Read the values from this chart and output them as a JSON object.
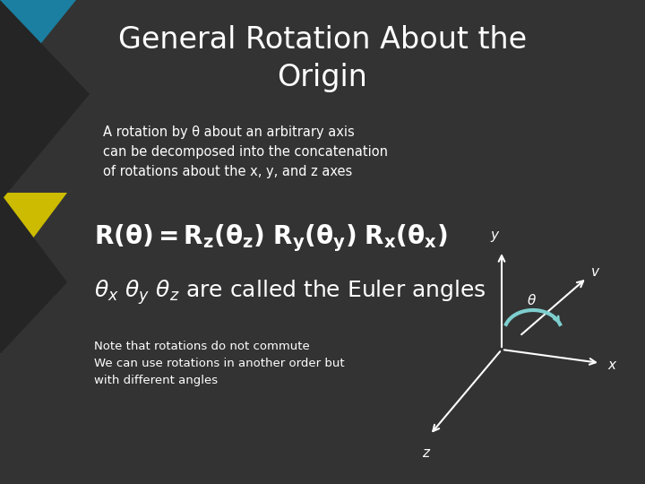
{
  "title_line1": "General Rotation About the",
  "title_line2": "Origin",
  "title_fontsize": 24,
  "title_color": "#ffffff",
  "bg_color": "#333333",
  "subtitle_text": "A rotation by θ about an arbitrary axis\ncan be decomposed into the concatenation\nof rotations about the x, y, and z axes",
  "subtitle_fontsize": 10.5,
  "formula_fontsize": 20,
  "euler_fontsize": 18,
  "note_text": "Note that rotations do not commute\nWe can use rotations in another order but\nwith different angles",
  "note_fontsize": 9.5,
  "arrow_color": "#ffffff",
  "arc_color": "#7ecece",
  "text_color": "#ffffff",
  "corner_teal": "#1a7fa0",
  "corner_red": "#cc2200",
  "corner_yellow": "#ccbb00",
  "corner_gray": "#888888",
  "dark_color": "#252525"
}
